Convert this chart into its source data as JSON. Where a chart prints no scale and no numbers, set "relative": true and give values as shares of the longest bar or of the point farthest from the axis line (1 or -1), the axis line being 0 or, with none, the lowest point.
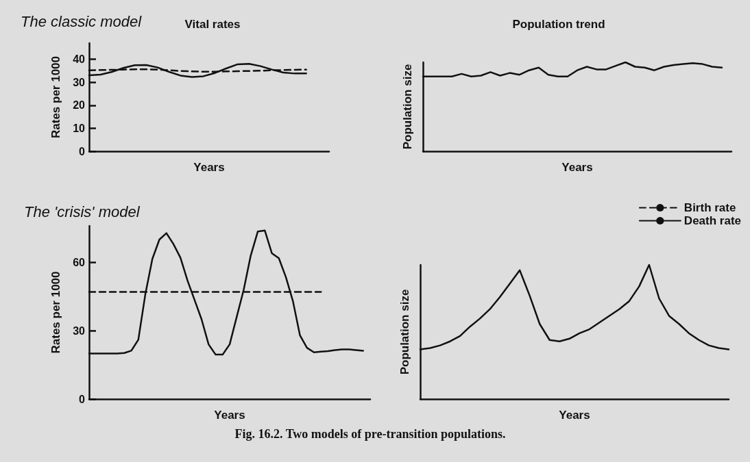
{
  "chart_data": [
    {
      "type": "line",
      "title": "Vital rates",
      "xlabel": "Years",
      "ylabel": "Rates per 1000",
      "annotations": [
        "The classic model"
      ],
      "marker": "none",
      "tick_labels": "y",
      "categories": [
        null,
        null,
        null,
        null,
        null,
        null,
        null,
        null,
        null,
        null,
        null,
        null,
        null,
        null,
        null,
        null,
        null,
        null,
        null,
        null,
        null,
        null
      ],
      "series": [
        {
          "color": "#111111",
          "line_style": "dashed",
          "values": [
            35.2,
            35.3,
            35.4,
            35.5,
            35.6,
            35.6,
            35.5,
            35.2,
            34.9,
            34.7,
            34.6,
            34.6,
            34.7,
            34.8,
            34.9,
            35.0,
            35.2,
            35.3,
            35.4,
            35.5,
            null,
            null
          ]
        },
        {
          "color": "#111111",
          "line_style": "solid",
          "values": [
            33.0,
            33.3,
            34.5,
            36.2,
            37.4,
            37.5,
            36.4,
            34.5,
            32.9,
            32.3,
            32.6,
            34.0,
            36.0,
            37.8,
            38.0,
            37.0,
            35.5,
            34.2,
            33.8,
            33.8,
            null,
            null
          ]
        }
      ],
      "ylim": [
        0,
        47
      ],
      "yticks": [
        0,
        10,
        20,
        30,
        40
      ]
    },
    {
      "type": "line",
      "title": "Population trend",
      "xlabel": "Years",
      "ylabel": "Population size",
      "relative": true,
      "marker": "none",
      "tick_labels": false,
      "color": "#111111",
      "categories": [
        null,
        null,
        null,
        null,
        null,
        null,
        null,
        null,
        null,
        null,
        null,
        null,
        null,
        null,
        null,
        null,
        null,
        null,
        null,
        null,
        null,
        null,
        null,
        null,
        null,
        null,
        null,
        null,
        null,
        null,
        null,
        null,
        null
      ],
      "values": [
        0.84,
        0.84,
        0.84,
        0.84,
        0.87,
        0.84,
        0.85,
        0.89,
        0.85,
        0.88,
        0.86,
        0.91,
        0.94,
        0.86,
        0.84,
        0.84,
        0.91,
        0.95,
        0.92,
        0.92,
        0.96,
        1,
        0.95,
        0.94,
        0.91,
        0.95,
        0.97,
        0.98,
        0.99,
        0.98,
        0.95,
        0.94,
        null
      ]
    },
    {
      "type": "line",
      "xlabel": "Years",
      "ylabel": "Rates per 1000",
      "annotations": [
        "The 'crisis' model",
        "Fig. 16.2. Two models of pre-transition populations."
      ],
      "marker": "none",
      "tick_labels": "y",
      "legend": "top right",
      "categories": [
        null,
        null,
        null,
        null,
        null,
        null,
        null,
        null,
        null,
        null,
        null,
        null,
        null,
        null,
        null,
        null,
        null,
        null,
        null,
        null,
        null,
        null,
        null,
        null,
        null,
        null,
        null,
        null,
        null,
        null,
        null,
        null,
        null,
        null,
        null,
        null,
        null,
        null,
        null,
        null,
        null
      ],
      "series": [
        {
          "name": "Birth rate",
          "color": "#111111",
          "line_style": "dashed",
          "values": [
            47,
            47,
            47,
            47,
            47,
            47,
            47,
            47,
            47,
            47,
            47,
            47,
            47,
            47,
            47,
            47,
            47,
            47,
            47,
            47,
            47,
            47,
            47,
            47,
            47,
            47,
            47,
            47,
            47,
            47,
            47,
            47,
            47,
            47,
            null,
            null,
            null,
            null,
            null,
            null,
            null
          ]
        },
        {
          "name": "Death rate",
          "color": "#111111",
          "line_style": "solid",
          "values": [
            20,
            20,
            20,
            20,
            20,
            20.2,
            21.2,
            26,
            46,
            61.5,
            70,
            72.8,
            68,
            62,
            52,
            43.5,
            35,
            24,
            19.5,
            19.5,
            24,
            36,
            48,
            63,
            73.5,
            74,
            64,
            61.8,
            53.5,
            43,
            28,
            22.5,
            20.5,
            20.8,
            21,
            21.5,
            21.8,
            21.8,
            21.5,
            21.2,
            null
          ]
        }
      ],
      "ylim": [
        0,
        76
      ],
      "yticks": [
        0,
        30,
        60
      ]
    },
    {
      "type": "line",
      "xlabel": "Years",
      "ylabel": "Population size",
      "relative": true,
      "marker": "none",
      "tick_labels": false,
      "color": "#111111",
      "categories": [
        null,
        null,
        null,
        null,
        null,
        null,
        null,
        null,
        null,
        null,
        null,
        null,
        null,
        null,
        null,
        null,
        null,
        null,
        null,
        null,
        null,
        null,
        null,
        null,
        null,
        null,
        null,
        null,
        null,
        null,
        null,
        null
      ],
      "values": [
        0.37,
        0.38,
        0.4,
        0.43,
        0.47,
        0.54,
        0.6,
        0.67,
        0.76,
        0.86,
        0.96,
        0.77,
        0.56,
        0.44,
        0.43,
        0.45,
        0.49,
        0.52,
        0.57,
        0.62,
        0.67,
        0.73,
        0.84,
        1,
        0.75,
        0.62,
        0.56,
        0.49,
        0.44,
        0.4,
        0.38,
        0.37
      ]
    }
  ]
}
